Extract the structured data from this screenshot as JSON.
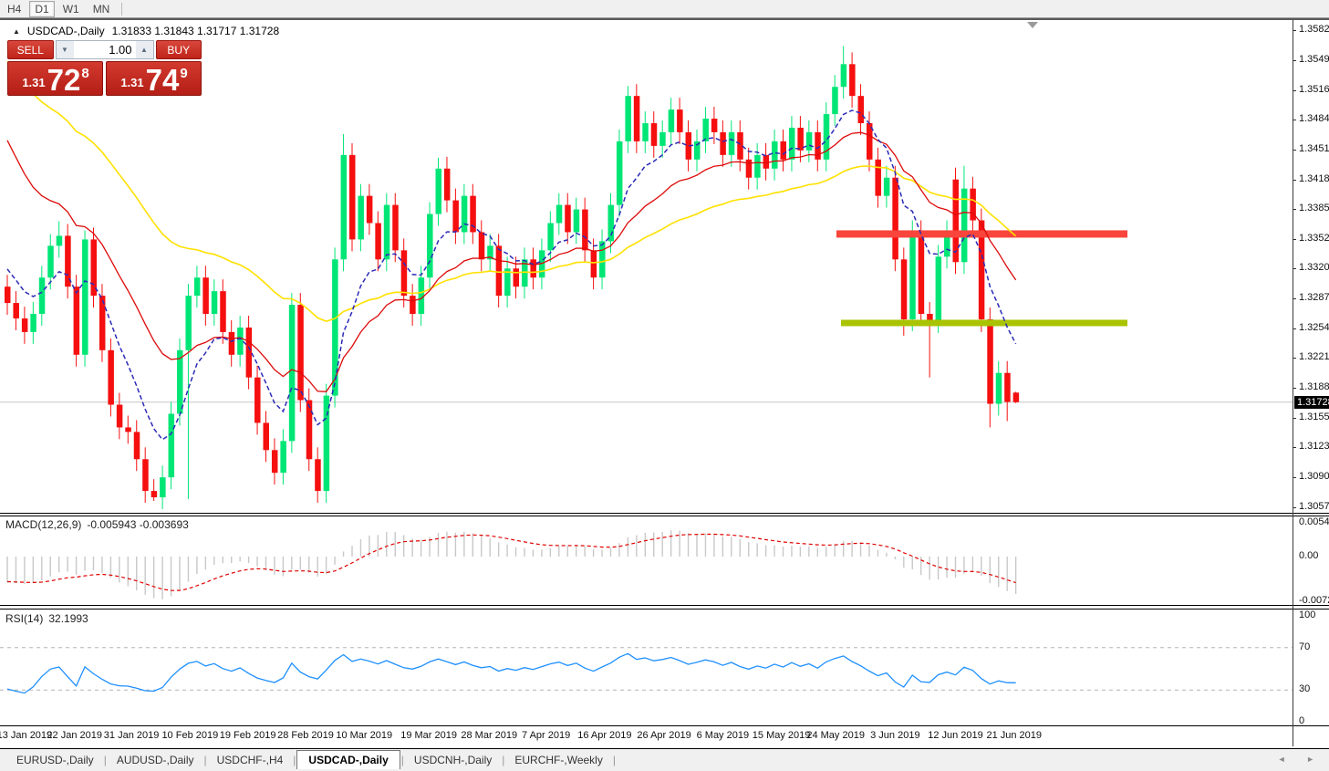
{
  "toolbar": {
    "timeframes": [
      {
        "label": "H4",
        "active": false
      },
      {
        "label": "D1",
        "active": true
      },
      {
        "label": "W1",
        "active": false
      },
      {
        "label": "MN",
        "active": false
      }
    ]
  },
  "icons": {
    "collapse": "▲",
    "volume_down": "▼",
    "volume_up": "▲",
    "autoscroll": "▼",
    "tab_scroll": "◄  ►"
  },
  "chart_header": {
    "symbol": "USDCAD-,Daily",
    "ohlc": "1.31833 1.31843 1.31717 1.31728"
  },
  "trade_panel": {
    "sell_label": "SELL",
    "buy_label": "BUY",
    "volume": "1.00",
    "sell_price": {
      "small": "1.31",
      "big": "72",
      "sup": "8"
    },
    "buy_price": {
      "small": "1.31",
      "big": "74",
      "sup": "9"
    }
  },
  "price_axis": {
    "current_price": "1.31728",
    "labels": [
      "1.35825",
      "1.35495",
      "1.35165",
      "1.34840",
      "1.34510",
      "1.34180",
      "1.33855",
      "1.33525",
      "1.33200",
      "1.32870",
      "1.32540",
      "1.32215",
      "1.31885",
      "1.31555",
      "1.31230",
      "1.30900",
      "1.30570"
    ]
  },
  "macd_panel": {
    "label": "MACD(12,26,9)",
    "values": "-0.005943 -0.003693",
    "axis": [
      "0.005402",
      "0.00",
      "-0.007247"
    ]
  },
  "rsi_panel": {
    "label": "RSI(14)",
    "value": "32.1993",
    "axis": [
      "100",
      "70",
      "30",
      "0"
    ]
  },
  "date_axis": {
    "labels": [
      "13 Jan 2019",
      "22 Jan 2019",
      "31 Jan 2019",
      "10 Feb 2019",
      "19 Feb 2019",
      "28 Feb 2019",
      "10 Mar 2019",
      "19 Mar 2019",
      "28 Mar 2019",
      "7 Apr 2019",
      "16 Apr 2019",
      "26 Apr 2019",
      "6 May 2019",
      "15 May 2019",
      "24 May 2019",
      "3 Jun 2019",
      "12 Jun 2019",
      "21 Jun 2019"
    ]
  },
  "bottom_tabs": {
    "tabs": [
      {
        "label": "EURUSD-,Daily",
        "active": false
      },
      {
        "label": "AUDUSD-,Daily",
        "active": false
      },
      {
        "label": "USDCHF-,H4",
        "active": false
      },
      {
        "label": "USDCAD-,Daily",
        "active": true
      },
      {
        "label": "USDCNH-,Daily",
        "active": false
      },
      {
        "label": "EURCHF-,Weekly",
        "active": false
      }
    ]
  },
  "chart_data": {
    "type": "candlestick",
    "symbol": "USDCAD-,Daily",
    "ohlc_display": {
      "open": 1.31833,
      "high": 1.31843,
      "low": 1.31717,
      "close": 1.31728
    },
    "ylim": [
      1.3057,
      1.35825
    ],
    "colors": {
      "bull": "#00E676",
      "bear": "#F50F0F",
      "current_line": "#c6c6c6"
    },
    "closes": [
      1.3282,
      1.3265,
      1.325,
      1.327,
      1.331,
      1.3345,
      1.3356,
      1.33,
      1.3225,
      1.3352,
      1.329,
      1.323,
      1.317,
      1.3145,
      1.314,
      1.311,
      1.3075,
      1.3068,
      1.309,
      1.316,
      1.323,
      1.329,
      1.331,
      1.327,
      1.3295,
      1.325,
      1.3225,
      1.3255,
      1.32,
      1.315,
      1.312,
      1.3095,
      1.313,
      1.328,
      1.3175,
      1.311,
      1.3075,
      1.318,
      1.333,
      1.3445,
      1.3352,
      1.34,
      1.337,
      1.333,
      1.339,
      1.334,
      1.329,
      1.327,
      1.331,
      1.338,
      1.343,
      1.3395,
      1.336,
      1.34,
      1.336,
      1.333,
      1.3345,
      1.329,
      1.332,
      1.33,
      1.333,
      1.331,
      1.334,
      1.337,
      1.339,
      1.336,
      1.3385,
      1.334,
      1.331,
      1.335,
      1.339,
      1.346,
      1.351,
      1.346,
      1.348,
      1.3455,
      1.347,
      1.3495,
      1.347,
      1.344,
      1.346,
      1.3485,
      1.347,
      1.3445,
      1.347,
      1.344,
      1.342,
      1.3445,
      1.343,
      1.346,
      1.344,
      1.3475,
      1.345,
      1.347,
      1.344,
      1.349,
      1.352,
      1.3545,
      1.351,
      1.348,
      1.344,
      1.34,
      1.342,
      1.333,
      1.3264,
      1.336,
      1.327,
      1.3262,
      1.3333,
      1.336,
      1.3327,
      1.3408,
      1.3373,
      1.3264,
      1.3171,
      1.3205,
      1.3173,
      1.31728
    ],
    "open_overrides": {
      "0": 1.33,
      "110": 1.3418,
      "117": 1.31833
    },
    "default_wick": 0.0013,
    "high_overrides": {
      "6": 1.3372,
      "9": 1.3362,
      "39": 1.3468,
      "50": 1.3442,
      "72": 1.3521,
      "97": 1.3565,
      "111": 1.3433,
      "117": 1.31843
    },
    "low_overrides": {
      "17": 1.3064,
      "21": 1.3066,
      "36": 1.3062,
      "104": 1.3246,
      "107": 1.32,
      "113": 1.325,
      "114": 1.3145,
      "116": 1.3152,
      "117": 1.31717
    },
    "price_ticks": [
      1.35825,
      1.35495,
      1.35165,
      1.3484,
      1.3451,
      1.3418,
      1.33855,
      1.33525,
      1.332,
      1.3287,
      1.3254,
      1.32215,
      1.31885,
      1.31555,
      1.3123,
      1.309,
      1.3057
    ],
    "current_price": 1.31728,
    "x_tick_labels": [
      "13 Jan 2019",
      "22 Jan 2019",
      "31 Jan 2019",
      "10 Feb 2019",
      "19 Feb 2019",
      "28 Feb 2019",
      "10 Mar 2019",
      "19 Mar 2019",
      "28 Mar 2019",
      "7 Apr 2019",
      "16 Apr 2019",
      "26 Apr 2019",
      "6 May 2019",
      "15 May 2019",
      "24 May 2019",
      "3 Jun 2019",
      "12 Jun 2019",
      "21 Jun 2019"
    ],
    "x_tick_indices": [
      2,
      7.8,
      14.4,
      21.2,
      27.9,
      34.6,
      41.4,
      48.9,
      55.9,
      62.5,
      69.3,
      76.2,
      83,
      89.8,
      96.1,
      103,
      110,
      116.8
    ],
    "objects": {
      "resistance_line": {
        "price": 1.3358,
        "x_from": 917,
        "x_to": 1236,
        "thickness": 8,
        "color": "#F9453B"
      },
      "support_line": {
        "price": 1.326,
        "x_from": 922,
        "x_to": 1236,
        "thickness": 7,
        "color": "#A9C301"
      }
    },
    "moving_averages": [
      {
        "name": "slow-ma",
        "period": 45,
        "seed": 1.356,
        "color": "#FFE100",
        "width": 1.6,
        "dash": ""
      },
      {
        "name": "mid-ma",
        "period": 20,
        "seed": 1.348,
        "color": "#DD0A0A",
        "width": 1.3,
        "dash": ""
      },
      {
        "name": "fast-ma",
        "period": 8,
        "seed": 1.333,
        "color": "#2B2BB8",
        "width": 1.5,
        "dash": "5 3"
      }
    ],
    "macd": {
      "fast": 12,
      "slow": 26,
      "signal": 9,
      "seed_fast": 1.332,
      "seed_slow": 1.3362,
      "seed_signal": -0.004,
      "hist_color": "#c8c8c8",
      "signal_color": "#E00000",
      "last": -0.005943,
      "last_signal": -0.003693,
      "axis_max": 0.005402,
      "axis_min": -0.007247
    },
    "rsi": {
      "period": 14,
      "last": 32.1993,
      "color": "#1E90FF",
      "levels": [
        70,
        30
      ],
      "level_color": "#b4b4b4",
      "seed_gain": 0.0006,
      "seed_loss": 0.0012
    }
  }
}
